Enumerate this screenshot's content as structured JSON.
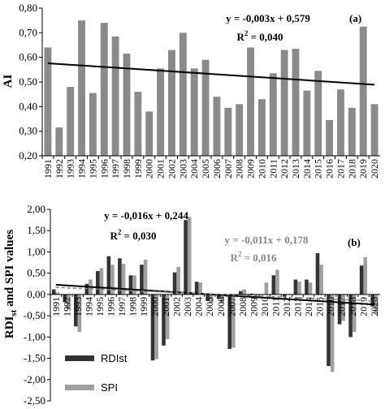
{
  "colors": {
    "ai_bar": "#8a8a8a",
    "rdi_bar": "#333333",
    "spi_bar": "#a0a0a0",
    "trend_dark": "#000000",
    "trend_grey": "#808080"
  },
  "chart_data": [
    {
      "type": "bar",
      "panel_label": "(a)",
      "ylabel": "AI",
      "ylim": [
        0.2,
        0.8
      ],
      "yticks": [
        "0,20",
        "0,30",
        "0,40",
        "0,50",
        "0,60",
        "0,70",
        "0,80"
      ],
      "categories": [
        "1991",
        "1992",
        "1993",
        "1994",
        "1995",
        "1996",
        "1997",
        "1998",
        "1999",
        "2000",
        "2001",
        "2002",
        "2003",
        "2004",
        "2005",
        "2006",
        "2007",
        "2008",
        "2009",
        "2010",
        "2011",
        "2012",
        "2013",
        "2014",
        "2015",
        "2016",
        "2017",
        "2018",
        "2019",
        "2020"
      ],
      "series": [
        {
          "values": [
            0.64,
            0.315,
            0.48,
            0.75,
            0.455,
            0.74,
            0.685,
            0.615,
            0.46,
            0.38,
            0.555,
            0.63,
            0.7,
            0.555,
            0.59,
            0.44,
            0.395,
            0.41,
            0.64,
            0.43,
            0.535,
            0.63,
            0.635,
            0.465,
            0.545,
            0.345,
            0.47,
            0.395,
            0.725,
            0.41
          ]
        }
      ],
      "trend": {
        "slope": -0.003,
        "intercept": 0.579,
        "equation": "y = -0,003x + 0,579",
        "r2_prefix": "R",
        "r2_exp": "2",
        "r2_value": " = 0,040"
      },
      "grid": false
    },
    {
      "type": "bar",
      "panel_label": "(b)",
      "ylabel_main": "RDI",
      "ylabel_sub": "st",
      "ylabel_rest": " and SPI values",
      "ylim": [
        -2.5,
        2.0
      ],
      "yticks": [
        "-2,50",
        "-2,00",
        "-1,50",
        "-1,00",
        "-0,50",
        "0,00",
        "0,50",
        "1,00",
        "1,50",
        "2,00"
      ],
      "categories": [
        "1991",
        "1992",
        "1993",
        "1994",
        "1995",
        "1996",
        "1997",
        "1998",
        "1999",
        "2000",
        "2001",
        "2002",
        "2003",
        "2004",
        "2005",
        "2006",
        "2007",
        "2008",
        "2009",
        "2010",
        "2011",
        "2012",
        "2013",
        "2014",
        "2015",
        "2016",
        "2017",
        "2018",
        "2019",
        "2020"
      ],
      "series": [
        {
          "name": "RDIst",
          "values": [
            0.12,
            -0.18,
            -0.75,
            0.25,
            0.55,
            0.9,
            0.85,
            0.45,
            0.7,
            -1.55,
            -1.2,
            0.52,
            1.75,
            0.3,
            -0.15,
            -0.1,
            -1.28,
            0.08,
            0.02,
            0.0,
            0.45,
            -0.05,
            0.35,
            0.35,
            0.97,
            -1.68,
            -0.7,
            -1.0,
            0.68,
            -0.28
          ]
        },
        {
          "name": "SPI",
          "values": [
            0.05,
            -0.35,
            -0.88,
            0.35,
            0.62,
            0.7,
            0.72,
            0.45,
            0.82,
            -1.52,
            -1.05,
            0.65,
            1.82,
            0.28,
            -0.2,
            -0.2,
            -1.25,
            0.12,
            -0.12,
            0.28,
            0.58,
            0.0,
            0.3,
            0.28,
            0.7,
            -1.82,
            -0.62,
            -0.88,
            0.88,
            -0.45
          ]
        }
      ],
      "trends": [
        {
          "series": "RDIst",
          "slope": -0.016,
          "intercept": 0.244,
          "equation": "y = -0,016x + 0,244",
          "r2_prefix": "R",
          "r2_exp": "2",
          "r2_value": " = 0,030"
        },
        {
          "series": "SPI",
          "slope": -0.011,
          "intercept": 0.178,
          "equation": "y = -0,011x + 0,178",
          "r2_prefix": "R",
          "r2_exp": "2",
          "r2_value": " = 0,016"
        }
      ],
      "legend_position": "bottom-left",
      "grid": false
    }
  ]
}
